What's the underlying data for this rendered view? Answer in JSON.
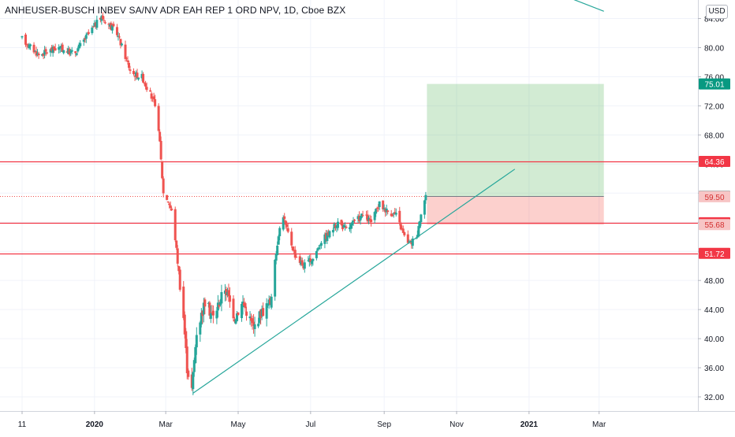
{
  "title": "ANHEUSER-BUSCH INBEV SA/NV ADR EAH REP 1 ORD NPV, 1D, Cboe BZX",
  "currency": "USD",
  "chart_data": {
    "type": "candlestick",
    "symbol": "ANHEUSER-BUSCH INBEV SA/NV ADR EAH REP 1 ORD NPV",
    "interval": "1D",
    "exchange": "Cboe BZX",
    "currency": "USD",
    "ylim": [
      30.0,
      86.5
    ],
    "y_ticks": [
      "32.00",
      "36.00",
      "40.00",
      "44.00",
      "48.00",
      "52.00",
      "56.00",
      "60.00",
      "64.00",
      "68.00",
      "72.00",
      "76.00",
      "80.00",
      "84.00"
    ],
    "x_ticks": [
      {
        "label": "11",
        "date": "2019-11-01"
      },
      {
        "label": "2020",
        "date": "2020-01-01"
      },
      {
        "label": "Mar",
        "date": "2020-03-01"
      },
      {
        "label": "May",
        "date": "2020-05-01"
      },
      {
        "label": "Jul",
        "date": "2020-07-01"
      },
      {
        "label": "Sep",
        "date": "2020-09-01"
      },
      {
        "label": "Nov",
        "date": "2020-11-01"
      },
      {
        "label": "2021",
        "date": "2021-01-01"
      },
      {
        "label": "Mar",
        "date": "2021-03-01"
      }
    ],
    "grid": true,
    "up_color": "#26a69a",
    "down_color": "#ef5350",
    "price_path": [
      [
        "2019-11-01",
        81.2
      ],
      [
        "2019-11-15",
        79.0
      ],
      [
        "2019-12-01",
        80.0
      ],
      [
        "2019-12-15",
        79.2
      ],
      [
        "2020-01-01",
        83.0
      ],
      [
        "2020-01-07",
        84.2
      ],
      [
        "2020-01-20",
        82.0
      ],
      [
        "2020-02-01",
        76.5
      ],
      [
        "2020-02-10",
        76.0
      ],
      [
        "2020-02-20",
        72.5
      ],
      [
        "2020-02-24",
        69.0
      ],
      [
        "2020-02-28",
        60.0
      ],
      [
        "2020-03-03",
        59.0
      ],
      [
        "2020-03-07",
        57.0
      ],
      [
        "2020-03-12",
        49.0
      ],
      [
        "2020-03-16",
        43.0
      ],
      [
        "2020-03-19",
        36.0
      ],
      [
        "2020-03-23",
        33.0
      ],
      [
        "2020-03-27",
        41.0
      ],
      [
        "2020-04-03",
        45.0
      ],
      [
        "2020-04-10",
        43.0
      ],
      [
        "2020-04-20",
        47.0
      ],
      [
        "2020-04-28",
        43.0
      ],
      [
        "2020-05-05",
        45.0
      ],
      [
        "2020-05-14",
        41.5
      ],
      [
        "2020-05-20",
        43.5
      ],
      [
        "2020-05-28",
        45.0
      ],
      [
        "2020-06-04",
        54.5
      ],
      [
        "2020-06-08",
        57.0
      ],
      [
        "2020-06-10",
        55.5
      ],
      [
        "2020-06-18",
        51.5
      ],
      [
        "2020-06-25",
        50.0
      ],
      [
        "2020-07-03",
        51.0
      ],
      [
        "2020-07-10",
        53.5
      ],
      [
        "2020-07-17",
        54.5
      ],
      [
        "2020-07-24",
        56.0
      ],
      [
        "2020-07-31",
        55.0
      ],
      [
        "2020-08-07",
        56.0
      ],
      [
        "2020-08-14",
        57.0
      ],
      [
        "2020-08-21",
        56.0
      ],
      [
        "2020-08-28",
        58.5
      ],
      [
        "2020-09-04",
        57.5
      ],
      [
        "2020-09-11",
        57.0
      ],
      [
        "2020-09-18",
        54.0
      ],
      [
        "2020-09-23",
        53.0
      ],
      [
        "2020-09-29",
        54.5
      ],
      [
        "2020-10-02",
        57.5
      ],
      [
        "2020-10-06",
        59.55
      ]
    ],
    "horizontal_levels": [
      {
        "price": 64.36,
        "label": "64.36"
      },
      {
        "price": 55.94,
        "label": "55.94"
      },
      {
        "price": 51.72,
        "label": "51.72"
      }
    ],
    "last_price": {
      "price": 59.55,
      "label": "59.55"
    },
    "price_labels": [
      {
        "price": 59.5,
        "label": "59.50"
      },
      {
        "price": 55.68,
        "label": "55.68"
      }
    ],
    "target": {
      "price": 75.01,
      "label": "75.01"
    },
    "position": {
      "start_date": "2020-10-07",
      "end_date": "2021-03-05",
      "entry": 59.55,
      "target": 75.01,
      "stop": 55.68
    },
    "trendlines": [
      {
        "from": [
          "2020-03-24",
          32.5
        ],
        "to": [
          "2020-12-20",
          63.3
        ]
      },
      {
        "from": [
          "2021-01-01",
          89.0
        ],
        "to": [
          "2021-03-05",
          85.0
        ]
      }
    ]
  }
}
